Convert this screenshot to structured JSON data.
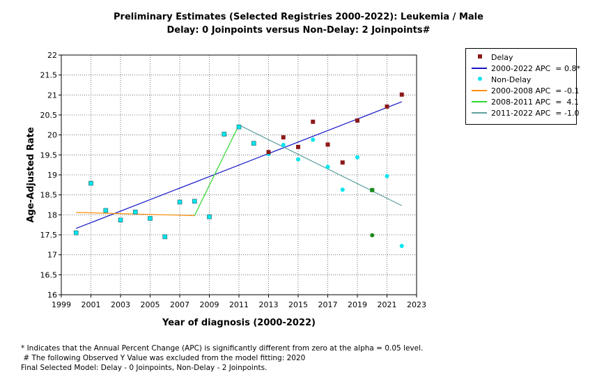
{
  "title_line1": "Preliminary Estimates (Selected Registries 2000-2022): Leukemia / Male",
  "title_line2": "Delay: 0 Joinpoints  versus  Non-Delay: 2 Joinpoints#",
  "chart_data": {
    "type": "scatter",
    "title": "Preliminary Estimates (Selected Registries 2000-2022): Leukemia / Male",
    "subtitle": "Delay: 0 Joinpoints  versus  Non-Delay: 2 Joinpoints#",
    "xlabel": "Year of diagnosis (2000-2022)",
    "ylabel": "Age-Adjusted Rate",
    "xlim": [
      1999,
      2023
    ],
    "ylim": [
      16,
      22
    ],
    "xticks": [
      "1999",
      "2001",
      "2003",
      "2005",
      "2007",
      "2009",
      "2011",
      "2013",
      "2015",
      "2017",
      "2019",
      "2021",
      "2023"
    ],
    "yticks": [
      "16",
      "16.5",
      "17",
      "17.5",
      "18",
      "18.5",
      "19",
      "19.5",
      "20",
      "20.5",
      "21",
      "21.5",
      "22"
    ],
    "grid": true,
    "legend_position": "right",
    "colors": {
      "delay": "#8b1a1a",
      "delay_trend": "#1414c8",
      "nondelay": "#00e5ee",
      "seg1": "#ff8c00",
      "seg2": "#2ad82a",
      "seg3": "#5f9ea0",
      "excluded": "#1a8a1a"
    },
    "series": [
      {
        "name": "Delay",
        "kind": "points",
        "x": [
          2000,
          2001,
          2002,
          2003,
          2004,
          2005,
          2006,
          2007,
          2008,
          2009,
          2010,
          2011,
          2012,
          2013,
          2014,
          2015,
          2016,
          2017,
          2018,
          2019,
          2020,
          2021,
          2022
        ],
        "y": [
          17.55,
          18.79,
          18.11,
          17.87,
          18.07,
          17.91,
          17.45,
          18.32,
          18.34,
          17.95,
          20.02,
          20.2,
          19.79,
          19.57,
          19.94,
          19.7,
          20.33,
          19.76,
          19.31,
          20.36,
          18.62,
          20.71,
          21.01
        ]
      },
      {
        "name": "2000-2022 APC  = 0.8*",
        "kind": "line",
        "x": [
          2000,
          2022
        ],
        "y": [
          17.66,
          20.83
        ]
      },
      {
        "name": "Non-Delay",
        "kind": "points",
        "x": [
          2000,
          2001,
          2002,
          2003,
          2004,
          2005,
          2006,
          2007,
          2008,
          2009,
          2010,
          2011,
          2012,
          2013,
          2014,
          2015,
          2016,
          2017,
          2018,
          2019,
          2020,
          2021,
          2022
        ],
        "y": [
          17.55,
          18.79,
          18.11,
          17.87,
          18.07,
          17.91,
          17.45,
          18.32,
          18.34,
          17.95,
          20.02,
          20.2,
          19.79,
          19.52,
          19.75,
          19.39,
          19.88,
          19.2,
          18.63,
          19.44,
          17.49,
          18.97,
          17.22
        ]
      },
      {
        "name": "2000-2008 APC  = -0.1",
        "kind": "line",
        "x": [
          2000,
          2008
        ],
        "y": [
          18.06,
          17.98
        ]
      },
      {
        "name": "2008-2011 APC  =  4.1",
        "kind": "line",
        "x": [
          2008,
          2011
        ],
        "y": [
          17.98,
          20.25
        ]
      },
      {
        "name": "2011-2022 APC  = -1.0",
        "kind": "line",
        "x": [
          2011,
          2022
        ],
        "y": [
          20.25,
          18.23
        ]
      }
    ],
    "excluded_points": {
      "x": [
        2020,
        2020
      ],
      "y": [
        18.62,
        17.49
      ]
    }
  },
  "legend": [
    {
      "label": "Delay",
      "symbol": "square",
      "color": "#8b1a1a"
    },
    {
      "label": "2000-2022 APC  = 0.8*",
      "symbol": "line",
      "color": "#1414c8"
    },
    {
      "label": "Non-Delay",
      "symbol": "dot",
      "color": "#00e5ee"
    },
    {
      "label": "2000-2008 APC  = -0.1",
      "symbol": "line",
      "color": "#ff8c00"
    },
    {
      "label": "2008-2011 APC  =  4.1",
      "symbol": "line",
      "color": "#2ad82a"
    },
    {
      "label": "2011-2022 APC  = -1.0",
      "symbol": "line",
      "color": "#5f9ea0"
    }
  ],
  "footnotes": {
    "line1": "* Indicates that the Annual Percent Change (APC) is significantly different from zero at the alpha = 0.05 level.",
    "line2": " # The following Observed Y Value was excluded from the model fitting: 2020",
    "line3": "Final Selected Model: Delay - 0 Joinpoints, Non-Delay - 2 Joinpoints."
  }
}
